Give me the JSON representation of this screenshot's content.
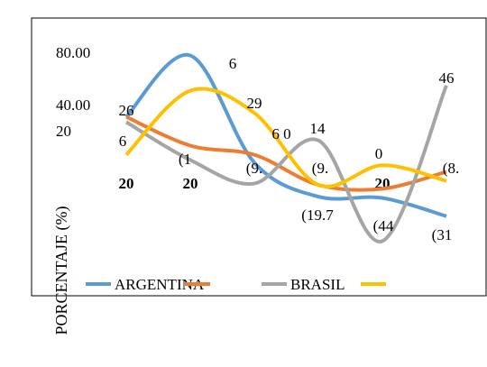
{
  "chart_data": {
    "type": "line",
    "y_label": "PORCENTAJE (%)",
    "categories": [
      "20",
      "20",
      null,
      null,
      "20",
      null
    ],
    "series": [
      {
        "name": "ARGENTINA",
        "color": "#5b9bd5",
        "values": [
          32,
          79,
          -3,
          -29,
          -30,
          -44
        ]
      },
      {
        "name": null,
        "color": "#ed7d31",
        "values": [
          32,
          10,
          3,
          -20,
          -23,
          -10
        ]
      },
      {
        "name": "BRASIL",
        "color": "#a5a5a5",
        "values": [
          28,
          -1,
          -19,
          14,
          -63,
          56
        ]
      },
      {
        "name": null,
        "color": "#ffc000",
        "values": [
          3,
          52,
          35,
          -20,
          -5,
          -17
        ]
      }
    ],
    "annotations": [
      "26",
      "6",
      "(1",
      "6",
      "29",
      "(9.",
      "6 0",
      "14",
      "(9.",
      "0",
      "(19.7",
      "(44",
      "(31",
      "46",
      "(8."
    ],
    "ylim": [
      -80,
      100
    ],
    "yticks": [
      {
        "value": 80,
        "label": "80.00"
      },
      {
        "value": 40,
        "label": "40.00"
      },
      20
    ],
    "grid": false
  }
}
